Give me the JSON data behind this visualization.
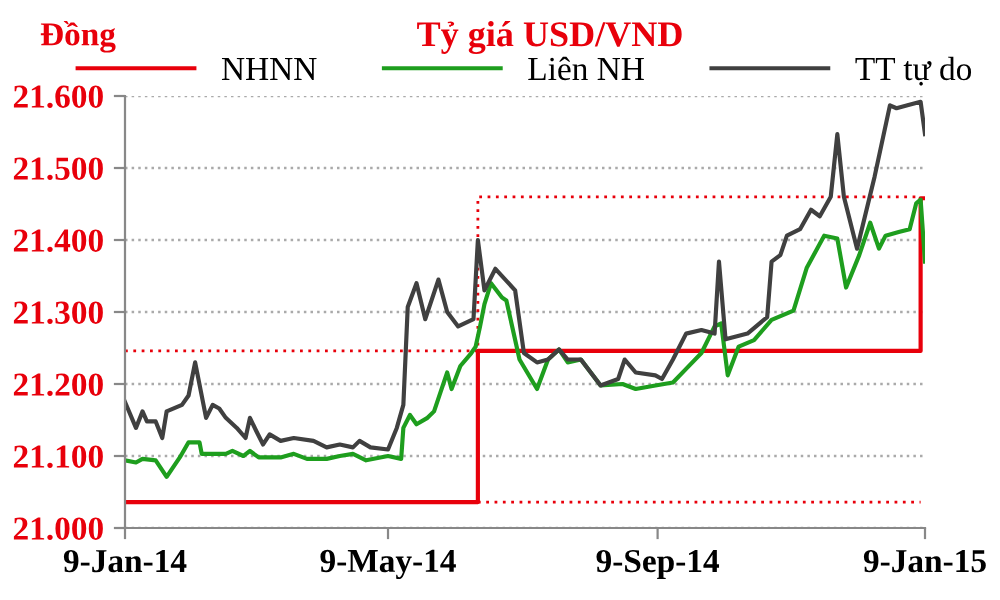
{
  "chart_data": {
    "type": "line",
    "title": "Tỷ giá USD/VND",
    "ylabel": "Đồng",
    "ylim": [
      21000,
      21600
    ],
    "yticks": [
      {
        "value": 21000,
        "label": "21.000"
      },
      {
        "value": 21100,
        "label": "21.100"
      },
      {
        "value": 21200,
        "label": "21.200"
      },
      {
        "value": 21300,
        "label": "21.300"
      },
      {
        "value": 21400,
        "label": "21.400"
      },
      {
        "value": 21500,
        "label": "21.500"
      },
      {
        "value": 21600,
        "label": "21.600"
      }
    ],
    "xlim": [
      "2014-01-09",
      "2015-01-09"
    ],
    "xticks": [
      {
        "value": "2014-01-09",
        "label": "9-Jan-14"
      },
      {
        "value": "2014-05-09",
        "label": "9-May-14"
      },
      {
        "value": "2014-09-09",
        "label": "9-Sep-14"
      },
      {
        "value": "2015-01-09",
        "label": "9-Jan-15"
      }
    ],
    "grid": "y",
    "legend": "top",
    "series": [
      {
        "color": "#e8000b",
        "line_style": "dotted",
        "x": [
          "2014-01-09",
          "2014-06-19",
          "2014-06-19",
          "2015-01-07"
        ],
        "values": [
          21246,
          21246,
          21460,
          21460
        ]
      },
      {
        "color": "#e8000b",
        "line_style": "dotted",
        "x": [
          "2014-06-19",
          "2015-01-07"
        ],
        "values": [
          21036,
          21036
        ]
      },
      {
        "name": "NHNN",
        "color": "#e8000b",
        "x": [
          "2014-01-09",
          "2014-06-19",
          "2014-06-19",
          "2015-01-07",
          "2015-01-07",
          "2015-01-09"
        ],
        "values": [
          21036,
          21036,
          21246,
          21246,
          21458,
          21458
        ]
      },
      {
        "name": "Liên NH",
        "color": "#1e9e1e",
        "x": [
          "2014-01-09",
          "2014-01-14",
          "2014-01-17",
          "2014-01-23",
          "2014-01-28",
          "2014-02-03",
          "2014-02-07",
          "2014-02-12",
          "2014-02-13",
          "2014-02-24",
          "2014-02-27",
          "2014-03-04",
          "2014-03-07",
          "2014-03-11",
          "2014-03-21",
          "2014-03-27",
          "2014-04-02",
          "2014-04-11",
          "2014-04-17",
          "2014-04-23",
          "2014-04-29",
          "2014-05-09",
          "2014-05-15",
          "2014-05-16",
          "2014-05-19",
          "2014-05-22",
          "2014-05-27",
          "2014-05-30",
          "2014-06-02",
          "2014-06-05",
          "2014-06-07",
          "2014-06-11",
          "2014-06-16",
          "2014-06-18",
          "2014-06-20",
          "2014-06-22",
          "2014-06-25",
          "2014-06-30",
          "2014-07-02",
          "2014-07-08",
          "2014-07-16",
          "2014-07-21",
          "2014-07-26",
          "2014-07-30",
          "2014-08-05",
          "2014-08-14",
          "2014-08-24",
          "2014-08-30",
          "2014-09-08",
          "2014-09-16",
          "2014-09-22",
          "2014-09-29",
          "2014-10-05",
          "2014-10-08",
          "2014-10-11",
          "2014-10-16",
          "2014-10-23",
          "2014-10-31",
          "2014-11-10",
          "2014-11-16",
          "2014-11-24",
          "2014-11-30",
          "2014-12-04",
          "2014-12-10",
          "2014-12-15",
          "2014-12-19",
          "2014-12-22",
          "2014-12-28",
          "2015-01-02",
          "2015-01-05",
          "2015-01-07",
          "2015-01-09"
        ],
        "values": [
          21094,
          21091,
          21096,
          21094,
          21071,
          21098,
          21119,
          21119,
          21103,
          21103,
          21107,
          21100,
          21107,
          21098,
          21098,
          21103,
          21096,
          21096,
          21100,
          21103,
          21094,
          21100,
          21096,
          21139,
          21157,
          21144,
          21153,
          21162,
          21189,
          21216,
          21193,
          21225,
          21243,
          21252,
          21280,
          21311,
          21340,
          21320,
          21316,
          21234,
          21193,
          21234,
          21248,
          21230,
          21234,
          21198,
          21200,
          21193,
          21198,
          21202,
          21221,
          21243,
          21280,
          21284,
          21212,
          21252,
          21261,
          21289,
          21302,
          21361,
          21406,
          21402,
          21334,
          21379,
          21424,
          21388,
          21406,
          21411,
          21415,
          21451,
          21456,
          21370
        ]
      },
      {
        "name": "TT tự do",
        "color": "#404040",
        "x": [
          "2014-01-09",
          "2014-01-14",
          "2014-01-17",
          "2014-01-19",
          "2014-01-23",
          "2014-01-26",
          "2014-01-28",
          "2014-02-04",
          "2014-02-07",
          "2014-02-10",
          "2014-02-15",
          "2014-02-18",
          "2014-02-21",
          "2014-02-24",
          "2014-03-01",
          "2014-03-05",
          "2014-03-07",
          "2014-03-10",
          "2014-03-13",
          "2014-03-16",
          "2014-03-21",
          "2014-03-27",
          "2014-04-05",
          "2014-04-11",
          "2014-04-17",
          "2014-04-23",
          "2014-04-26",
          "2014-05-01",
          "2014-05-09",
          "2014-05-13",
          "2014-05-16",
          "2014-05-18",
          "2014-05-22",
          "2014-05-26",
          "2014-06-01",
          "2014-06-05",
          "2014-06-10",
          "2014-06-17",
          "2014-06-19",
          "2014-06-22",
          "2014-06-27",
          "2014-07-03",
          "2014-07-06",
          "2014-07-10",
          "2014-07-16",
          "2014-07-21",
          "2014-07-26",
          "2014-07-30",
          "2014-08-05",
          "2014-08-14",
          "2014-08-22",
          "2014-08-25",
          "2014-08-30",
          "2014-09-08",
          "2014-09-11",
          "2014-09-16",
          "2014-09-22",
          "2014-09-29",
          "2014-10-05",
          "2014-10-07",
          "2014-10-10",
          "2014-10-20",
          "2014-10-29",
          "2014-10-31",
          "2014-11-04",
          "2014-11-07",
          "2014-11-13",
          "2014-11-18",
          "2014-11-22",
          "2014-11-27",
          "2014-11-30",
          "2014-12-03",
          "2014-12-09",
          "2014-12-17",
          "2014-12-24",
          "2014-12-27",
          "2015-01-01",
          "2015-01-07",
          "2015-01-09"
        ],
        "values": [
          21175,
          21139,
          21162,
          21148,
          21148,
          21125,
          21162,
          21171,
          21184,
          21230,
          21153,
          21171,
          21166,
          21153,
          21139,
          21125,
          21153,
          21134,
          21116,
          21130,
          21121,
          21125,
          21121,
          21112,
          21116,
          21112,
          21121,
          21112,
          21109,
          21139,
          21171,
          21307,
          21340,
          21290,
          21345,
          21300,
          21280,
          21290,
          21400,
          21330,
          21360,
          21340,
          21330,
          21243,
          21230,
          21234,
          21248,
          21234,
          21234,
          21198,
          21207,
          21234,
          21216,
          21212,
          21207,
          21234,
          21270,
          21275,
          21270,
          21370,
          21262,
          21270,
          21293,
          21370,
          21379,
          21406,
          21415,
          21442,
          21433,
          21460,
          21547,
          21460,
          21388,
          21488,
          21587,
          21583,
          21587,
          21592,
          21547
        ]
      }
    ]
  }
}
